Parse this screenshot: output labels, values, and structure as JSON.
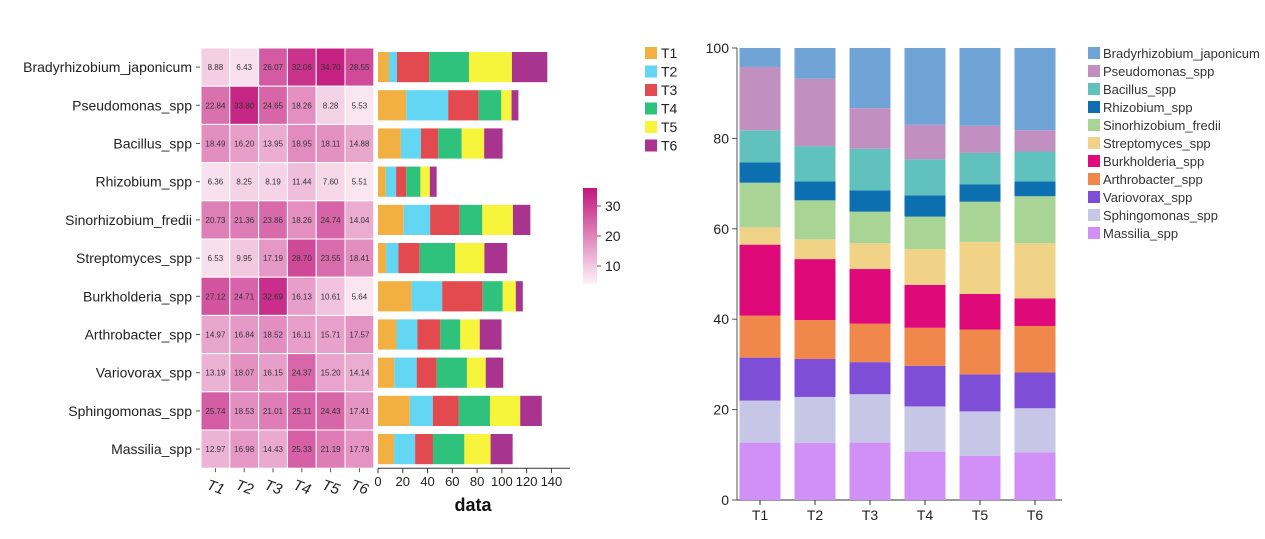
{
  "chart_data": [
    {
      "type": "heatmap",
      "rows": [
        "Bradyrhizobium_japonicum",
        "Pseudomonas_spp",
        "Bacillus_spp",
        "Rhizobium_spp",
        "Sinorhizobium_fredii",
        "Streptomyces_spp",
        "Burkholderia_spp",
        "Arthrobacter_spp",
        "Variovorax_spp",
        "Sphingomonas_spp",
        "Massilia_spp"
      ],
      "columns": [
        "T1",
        "T2",
        "T3",
        "T4",
        "T5",
        "T6"
      ],
      "values": [
        [
          8.88,
          6.43,
          26.07,
          32.06,
          34.7,
          28.55
        ],
        [
          22.84,
          33.8,
          24.65,
          18.26,
          8.28,
          5.53
        ],
        [
          18.49,
          16.2,
          13.95,
          18.95,
          18.11,
          14.88
        ],
        [
          6.36,
          8.25,
          8.19,
          11.44,
          7.6,
          5.51
        ],
        [
          20.73,
          21.36,
          23.86,
          18.26,
          24.74,
          14.04
        ],
        [
          6.53,
          9.95,
          17.19,
          28.7,
          23.55,
          18.41
        ],
        [
          27.12,
          24.71,
          32.69,
          16.13,
          10.61,
          5.64
        ],
        [
          14.97,
          16.84,
          18.52,
          16.11,
          15.71,
          17.57
        ],
        [
          13.19,
          18.07,
          16.15,
          24.37,
          15.2,
          14.14
        ],
        [
          25.74,
          18.53,
          21.01,
          25.11,
          24.43,
          17.41
        ],
        [
          12.97,
          16.98,
          14.43,
          25.33,
          21.19,
          17.79
        ]
      ],
      "colorbar": {
        "ticks": [
          10,
          20,
          30
        ],
        "range": [
          4,
          36
        ],
        "low_color": "#fdf0f7",
        "high_color": "#c2187d"
      }
    },
    {
      "type": "bar",
      "stacked": true,
      "orientation": "horizontal",
      "xlabel": "data",
      "xticks": [
        0,
        20,
        40,
        60,
        80,
        100,
        120,
        140
      ],
      "xlim": [
        0,
        155
      ],
      "legend": {
        "placement": "right",
        "entries": [
          "T1",
          "T2",
          "T3",
          "T4",
          "T5",
          "T6"
        ]
      },
      "colors": [
        "#f2b042",
        "#62d6f2",
        "#e34a4f",
        "#2fc27d",
        "#f6f53c",
        "#a9348f"
      ]
    },
    {
      "type": "bar",
      "stacked": true,
      "categories": [
        "T1",
        "T2",
        "T3",
        "T4",
        "T5",
        "T6"
      ],
      "ylim": [
        0,
        100
      ],
      "yticks": [
        0,
        20,
        40,
        60,
        80,
        100
      ],
      "legend": {
        "placement": "right"
      },
      "series": [
        {
          "name": "Massilia_spp",
          "color": "#d190f5",
          "values": [
            12.7,
            12.6,
            12.7,
            10.7,
            9.8,
            10.5
          ]
        },
        {
          "name": "Sphingomonas_spp",
          "color": "#c8c6e7",
          "values": [
            9.3,
            10.2,
            10.7,
            10.0,
            9.8,
            9.8
          ]
        },
        {
          "name": "Variovorax_spp",
          "color": "#7e4fd6",
          "values": [
            9.5,
            8.4,
            7.1,
            9.0,
            8.2,
            7.9
          ]
        },
        {
          "name": "Arthrobacter_spp",
          "color": "#f0884c",
          "values": [
            9.3,
            8.6,
            8.5,
            8.4,
            9.9,
            10.3
          ]
        },
        {
          "name": "Burkholderia_spp",
          "color": "#e0097a",
          "values": [
            15.7,
            13.5,
            12.1,
            9.5,
            7.9,
            6.1
          ]
        },
        {
          "name": "Streptomyces_spp",
          "color": "#f0d386",
          "values": [
            3.8,
            4.4,
            5.7,
            7.9,
            11.5,
            12.2
          ]
        },
        {
          "name": "Sinorhizobium_fredii",
          "color": "#a8d496",
          "values": [
            9.9,
            8.6,
            7.0,
            7.2,
            8.9,
            10.4
          ]
        },
        {
          "name": "Rhizobium_spp",
          "color": "#0c6faf",
          "values": [
            4.5,
            4.2,
            4.7,
            4.7,
            3.8,
            3.3
          ]
        },
        {
          "name": "Bacillus_spp",
          "color": "#60c1bd",
          "values": [
            7.1,
            7.8,
            9.2,
            8.0,
            7.0,
            6.6
          ]
        },
        {
          "name": "Pseudomonas_spp",
          "color": "#c190c1",
          "values": [
            14.0,
            14.9,
            9.0,
            7.6,
            6.0,
            4.7
          ]
        },
        {
          "name": "Bradyrhizobium_japonicum",
          "color": "#70a4d7",
          "values": [
            4.2,
            6.8,
            13.3,
            17.0,
            17.2,
            18.2
          ]
        }
      ]
    }
  ]
}
